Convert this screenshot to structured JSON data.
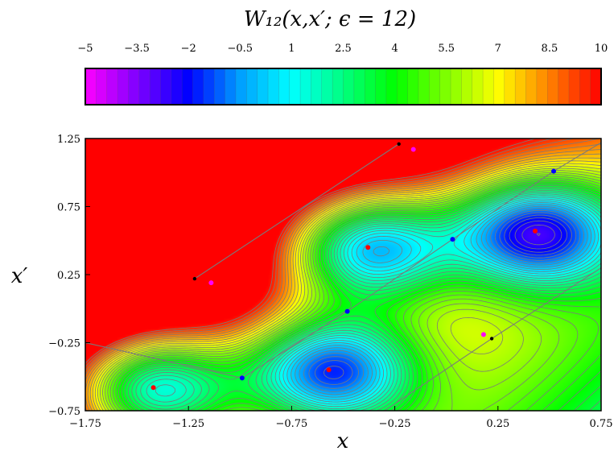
{
  "chart_data": {
    "type": "heatmap",
    "title": "W₁₂(x,x′; ϵ = 12)",
    "xlabel": "x",
    "ylabel": "x′",
    "xlim": [
      -1.75,
      0.75
    ],
    "ylim": [
      -0.75,
      1.25
    ],
    "x_ticks": [
      "−1.75",
      "−1.25",
      "−0.75",
      "−0.25",
      "0.25",
      "0.75"
    ],
    "y_ticks": [
      "−0.75",
      "−0.25",
      "0.25",
      "0.75",
      "1.25"
    ],
    "x_tick_values": [
      -1.75,
      -1.25,
      -0.75,
      -0.25,
      0.25,
      0.75
    ],
    "y_tick_values": [
      -0.75,
      -0.25,
      0.25,
      0.75,
      1.25
    ],
    "colorbar": {
      "range": [
        -5,
        10
      ],
      "ticks": [
        "−5",
        "−3.5",
        "−2",
        "−0.5",
        "1",
        "2.5",
        "4",
        "5.5",
        "7",
        "8.5",
        "10"
      ],
      "tick_values": [
        -5,
        -3.5,
        -2,
        -0.5,
        1,
        2.5,
        4,
        5.5,
        7,
        8.5,
        10
      ],
      "colors": [
        "#ff00ff",
        "#8000ff",
        "#0000ff",
        "#00a0ff",
        "#00ffff",
        "#00ff80",
        "#00ff00",
        "#80ff00",
        "#ffff00",
        "#ff8000",
        "#ff0000"
      ],
      "levels": 48
    },
    "minima_points": [
      {
        "x": -1.42,
        "y": -0.58
      },
      {
        "x": -0.57,
        "y": -0.45
      },
      {
        "x": -0.38,
        "y": 0.45
      },
      {
        "x": 0.43,
        "y": 0.57
      }
    ],
    "saddle_points": [
      {
        "x": -0.99,
        "y": -0.51
      },
      {
        "x": -0.48,
        "y": -0.02
      },
      {
        "x": 0.03,
        "y": 0.51
      },
      {
        "x": 0.52,
        "y": 1.01
      }
    ],
    "magenta_points": [
      {
        "x": -1.14,
        "y": 0.19
      },
      {
        "x": -0.16,
        "y": 1.17
      },
      {
        "x": 0.18,
        "y": -0.19
      }
    ],
    "black_points": [
      {
        "x": -1.22,
        "y": 0.22
      },
      {
        "x": -0.23,
        "y": 1.21
      },
      {
        "x": 0.22,
        "y": -0.22
      }
    ],
    "colors": {
      "contour": "#7a7a7a",
      "minima": "#ff0000",
      "saddle": "#0000ff",
      "magenta": "#ff00ff",
      "black": "#000000"
    }
  }
}
